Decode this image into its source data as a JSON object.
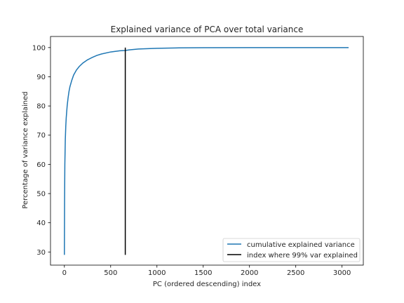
{
  "chart_data": {
    "type": "line",
    "title": "Explained variance of PCA over total variance",
    "xlabel": "PC (ordered descending) index",
    "ylabel": "Percentage of variance explained",
    "xlim": [
      -150,
      3230
    ],
    "ylim": [
      25.5,
      103.8
    ],
    "xticks": [
      0,
      500,
      1000,
      1500,
      2000,
      2500,
      3000
    ],
    "yticks": [
      30,
      40,
      50,
      60,
      70,
      80,
      90,
      100
    ],
    "grid": false,
    "legend_position": "lower-right",
    "series": [
      {
        "name": "cumulative explained variance",
        "color": "#1f77b4",
        "x": [
          0,
          2,
          5,
          10,
          15,
          20,
          30,
          40,
          50,
          60,
          80,
          100,
          130,
          160,
          200,
          250,
          300,
          350,
          400,
          500,
          600,
          658,
          700,
          800,
          1000,
          1200,
          1500,
          2000,
          2500,
          3071
        ],
        "y": [
          29.0,
          47.0,
          60.0,
          68.5,
          73.0,
          76.0,
          80.0,
          82.8,
          85.0,
          86.6,
          88.8,
          90.6,
          92.3,
          93.5,
          94.7,
          95.8,
          96.6,
          97.3,
          97.8,
          98.5,
          98.9,
          99.0,
          99.2,
          99.5,
          99.75,
          99.88,
          99.95,
          99.99,
          100.0,
          100.0
        ]
      },
      {
        "name": "index where 99% var explained",
        "color": "#000000",
        "kind": "vertical-line",
        "x": 658,
        "y_range": [
          29.0,
          100.0
        ]
      }
    ]
  }
}
